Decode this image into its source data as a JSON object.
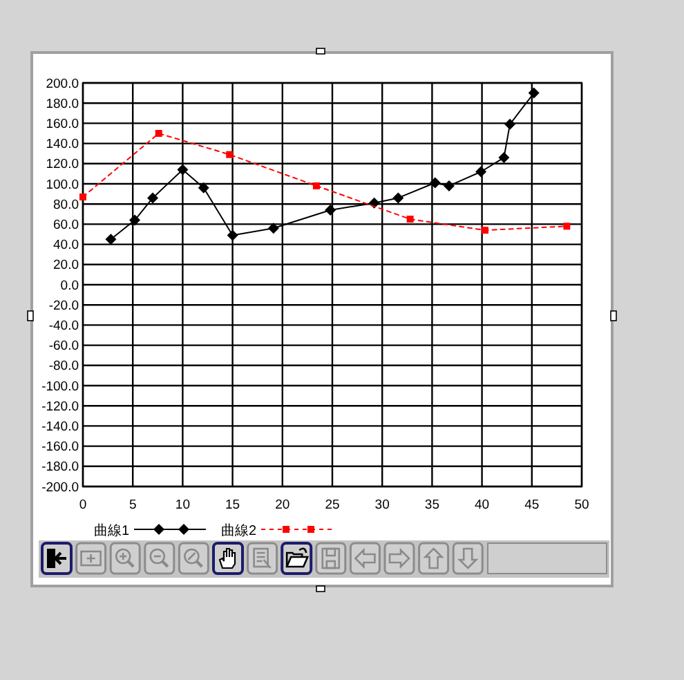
{
  "chart_data": {
    "type": "line",
    "series": [
      {
        "name": "曲線1",
        "color": "#000000",
        "marker": "diamond",
        "line_style": "solid",
        "x": [
          2.8,
          5.2,
          7,
          10,
          12.1,
          15,
          19.1,
          24.8,
          29.2,
          31.6,
          35.3,
          36.7,
          39.9,
          42.2,
          42.8,
          45.2
        ],
        "values": [
          45,
          64,
          86,
          114,
          96,
          49,
          56,
          74,
          81,
          86,
          101,
          98,
          112,
          126,
          159,
          190
        ]
      },
      {
        "name": "曲線2",
        "color": "#ff0000",
        "marker": "square",
        "line_style": "dashed",
        "x": [
          0,
          7.6,
          14.7,
          23.4,
          32.8,
          40.3,
          48.5
        ],
        "values": [
          87,
          150,
          129,
          98,
          65,
          54,
          58
        ]
      }
    ],
    "xlim": [
      0,
      50
    ],
    "xticks": [
      0,
      5,
      10,
      15,
      20,
      25,
      30,
      35,
      40,
      45,
      50
    ],
    "ylim": [
      -200,
      200
    ],
    "yticks": [
      {
        "value": 200,
        "label": "200.0"
      },
      {
        "value": 180,
        "label": "180.0"
      },
      {
        "value": 160,
        "label": "160.0"
      },
      {
        "value": 140,
        "label": "140.0"
      },
      {
        "value": 120,
        "label": "120.0"
      },
      {
        "value": 100,
        "label": "100.0"
      },
      {
        "value": 80,
        "label": "80.0"
      },
      {
        "value": 60,
        "label": "60.0"
      },
      {
        "value": 40,
        "label": "40.0"
      },
      {
        "value": 20,
        "label": "20.0"
      },
      {
        "value": 0,
        "label": "0.0"
      },
      {
        "value": -20,
        "label": "-20.0"
      },
      {
        "value": -40,
        "label": "-40.0"
      },
      {
        "value": -60,
        "label": "-60.0"
      },
      {
        "value": -80,
        "label": "-80.0"
      },
      {
        "value": -100,
        "label": "-100.0"
      },
      {
        "value": -120,
        "label": "-120.0"
      },
      {
        "value": -140,
        "label": "-140.0"
      },
      {
        "value": -160,
        "label": "-160.0"
      },
      {
        "value": -180,
        "label": "-180.0"
      },
      {
        "value": -200,
        "label": "-200.0"
      }
    ],
    "grid": true,
    "legend": "bottom"
  }
}
